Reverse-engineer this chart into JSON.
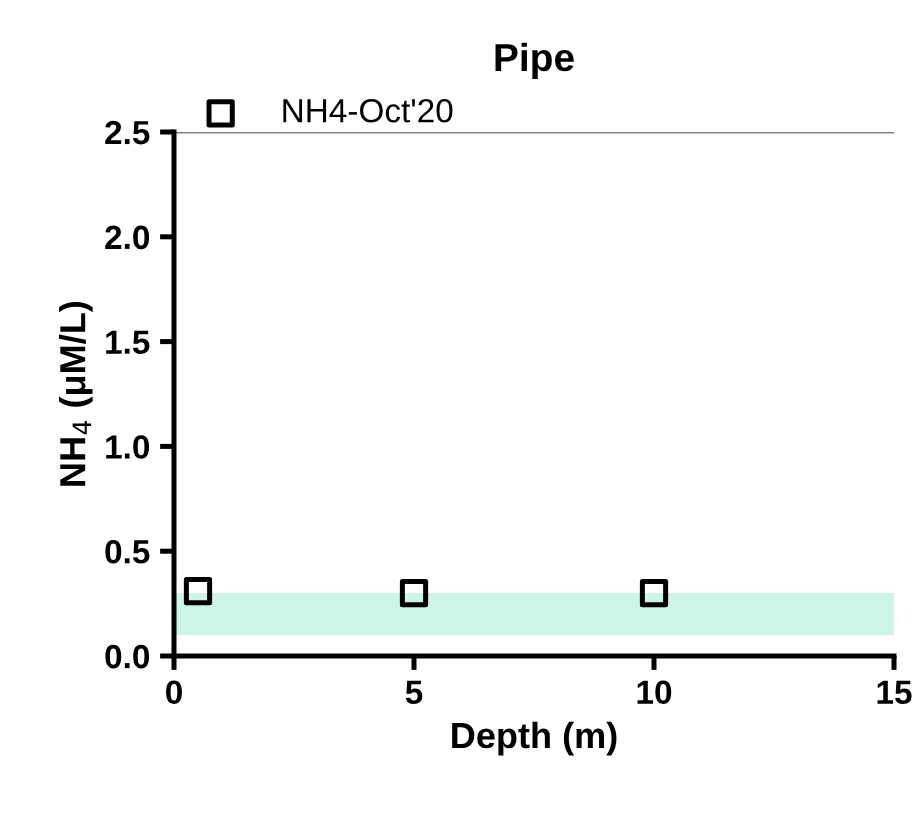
{
  "chart_data": {
    "type": "scatter",
    "title": "Pipe",
    "xlabel": "Depth (m)",
    "ylabel": "NH$_{4}$ (μM/L)",
    "series": [
      {
        "name": "NH4-Oct'20",
        "color": "#000000",
        "x": [
          0.5,
          5,
          10
        ],
        "values": [
          0.31,
          0.3,
          0.3
        ]
      }
    ],
    "xlim": [
      0,
      15
    ],
    "xticks": [
      0,
      5,
      10,
      15
    ],
    "ylim": [
      0,
      2.5
    ],
    "yticks": [
      {
        "value": 0,
        "label": "0.0"
      },
      {
        "value": 0.5,
        "label": "0.5"
      },
      {
        "value": 1,
        "label": "1.0"
      },
      {
        "value": 1.5,
        "label": "1.5"
      },
      {
        "value": 2,
        "label": "2.0"
      },
      {
        "value": 2.5,
        "label": "2.5"
      }
    ],
    "bands": [
      {
        "axis": "y",
        "from": 0.1,
        "to": 0.3,
        "color": "#cdf5e6"
      }
    ],
    "ref_lines": [
      {
        "axis": "y",
        "value": 2.5,
        "color": "#808080"
      }
    ],
    "marker": "square",
    "legend": "top left",
    "grid": false
  }
}
